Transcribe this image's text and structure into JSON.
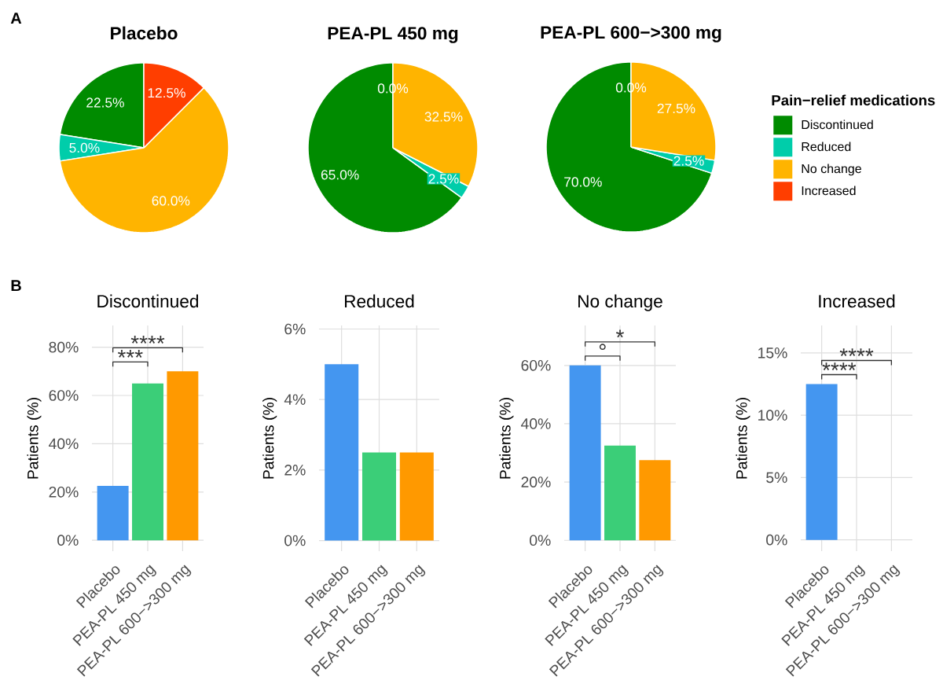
{
  "chart_data": [
    {
      "type": "pie",
      "title": "Placebo",
      "values": [
        22.5,
        5.0,
        60.0,
        12.5
      ],
      "colors": [
        "#008b00",
        "#00cdaa",
        "#ffb400",
        "#ff3e00"
      ],
      "value_labels": [
        "22.5%",
        "5.0%",
        "60.0%",
        "12.5%"
      ],
      "annotations": [
        "A"
      ]
    },
    {
      "type": "pie",
      "title": "PEA-PL 450 mg",
      "values": [
        65.0,
        2.5,
        32.5,
        0.0
      ],
      "colors": [
        "#008b00",
        "#00cdaa",
        "#ffb400",
        "#ff3e00"
      ],
      "value_labels": [
        "65.0%",
        "2.5%",
        "32.5%",
        "0.0%"
      ]
    },
    {
      "type": "pie",
      "title": "PEA-PL 600−>300 mg",
      "categories": [
        "Discontinued",
        "Reduced",
        "No change",
        "Increased"
      ],
      "values": [
        70.0,
        2.5,
        27.5,
        0.0
      ],
      "colors": [
        "#008b00",
        "#00cdaa",
        "#ffb400",
        "#ff3e00"
      ],
      "value_labels": [
        "70.0%",
        "2.5%",
        "27.5%",
        "0.0%"
      ],
      "legend": "right",
      "legend_title": "Pain−relief medications"
    },
    {
      "type": "bar",
      "title": "Discontinued",
      "ylabel": "Patients (%)",
      "categories": [
        "Placebo",
        "PEA-PL 450 mg",
        "PEA-PL 600−>300 mg"
      ],
      "values": [
        22.5,
        65.0,
        70.0
      ],
      "colors": [
        "#4496f0",
        "#3bce78",
        "#ff9900"
      ],
      "ylim": [
        -4.5,
        89
      ],
      "yticks": [
        {
          "value": 0,
          "label": "0%"
        },
        {
          "value": 20,
          "label": "20%"
        },
        {
          "value": 40,
          "label": "40%"
        },
        {
          "value": 60,
          "label": "60%"
        },
        {
          "value": 80,
          "label": "80%"
        }
      ],
      "grid": true,
      "annotations": [
        "***",
        "****",
        "B"
      ]
    },
    {
      "type": "bar",
      "title": "Reduced",
      "ylabel": "Patients (%)",
      "categories": [
        "Placebo",
        "PEA-PL 450 mg",
        "PEA-PL 600−>300 mg"
      ],
      "values": [
        5.0,
        2.5,
        2.5
      ],
      "colors": [
        "#4496f0",
        "#3bce78",
        "#ff9900"
      ],
      "ylim": [
        -0.3,
        6.1
      ],
      "yticks": [
        {
          "value": 0,
          "label": "0%"
        },
        {
          "value": 2,
          "label": "2%"
        },
        {
          "value": 4,
          "label": "4%"
        },
        {
          "value": 6,
          "label": "6%"
        }
      ],
      "grid": true
    },
    {
      "type": "bar",
      "title": "No change",
      "ylabel": "Patients (%)",
      "categories": [
        "Placebo",
        "PEA-PL 450 mg",
        "PEA-PL 600−>300 mg"
      ],
      "values": [
        60.0,
        32.5,
        27.5
      ],
      "colors": [
        "#4496f0",
        "#3bce78",
        "#ff9900"
      ],
      "ylim": [
        -3.7,
        73.7
      ],
      "yticks": [
        {
          "value": 0,
          "label": "0%"
        },
        {
          "value": 20,
          "label": "20%"
        },
        {
          "value": 40,
          "label": "40%"
        },
        {
          "value": 60,
          "label": "60%"
        }
      ],
      "grid": true,
      "annotations": [
        "°",
        "*"
      ]
    },
    {
      "type": "bar",
      "title": "Increased",
      "ylabel": "Patients (%)",
      "categories": [
        "Placebo",
        "PEA-PL 450 mg",
        "PEA-PL 600−>300 mg"
      ],
      "values": [
        12.5,
        0.0,
        0.0
      ],
      "colors": [
        "#4496f0",
        "#3bce78",
        "#ff9900"
      ],
      "ylim": [
        -0.9,
        17.2
      ],
      "yticks": [
        {
          "value": 0,
          "label": "0%"
        },
        {
          "value": 5,
          "label": "5%"
        },
        {
          "value": 10,
          "label": "10%"
        },
        {
          "value": 15,
          "label": "15%"
        }
      ],
      "grid": true,
      "annotations": [
        "****",
        "****"
      ]
    }
  ]
}
